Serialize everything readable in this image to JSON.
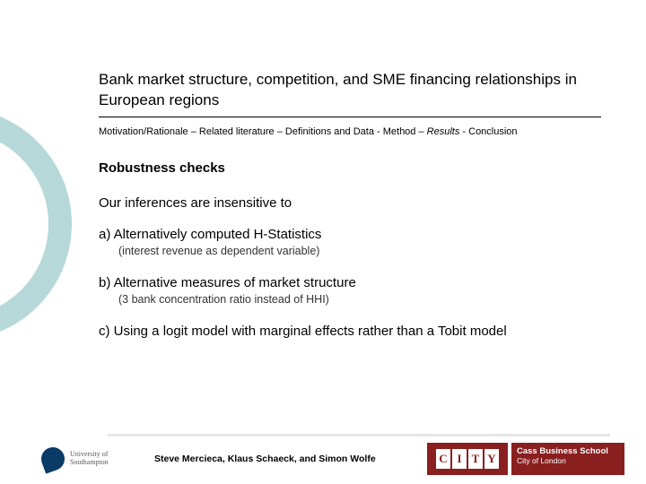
{
  "title": "Bank market structure, competition, and SME financing relationships in European regions",
  "breadcrumb": {
    "prefix": "Motivation/Rationale – Related literature – Definitions and Data - Method – ",
    "current": "Results",
    "suffix": " - Conclusion"
  },
  "section_heading": "Robustness checks",
  "lead": "Our inferences are insensitive to",
  "items": [
    {
      "label": "a) Alternatively computed H-Statistics",
      "sub": "(interest revenue as dependent variable)"
    },
    {
      "label": "b) Alternative measures of market structure",
      "sub": "(3 bank concentration ratio instead of HHI)"
    },
    {
      "label": "c) Using a logit model with marginal effects rather than a Tobit model",
      "sub": ""
    }
  ],
  "authors": "Steve Mercieca, Klaus Schaeck, and Simon Wolfe",
  "logo_left": {
    "line1": "University of",
    "line2": "Southampton"
  },
  "logo_right": {
    "letters": [
      "C",
      "I",
      "T",
      "Y"
    ],
    "line1": "Cass Business School",
    "line2": "City of London"
  },
  "colors": {
    "arc": "#2f8f8f",
    "city_bg": "#8a1f1f",
    "dolphin": "#0a3a66"
  }
}
